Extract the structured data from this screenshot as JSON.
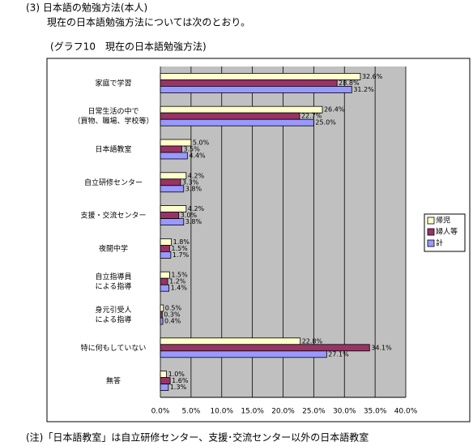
{
  "header": {
    "section": "(3) 日本語の勉強方法(本人)",
    "lead": "現在の日本語勉強方法については次のとおり。",
    "caption": "(グラフ10　現在の日本語勉強方法)"
  },
  "chart_data": {
    "type": "hbar",
    "categories": [
      "家庭で学習",
      "日常生活の中で\n（買物、職場、学校等）",
      "日本語教室",
      "自立研修センター",
      "支援・交流センター",
      "夜間中学",
      "自立指導員\nによる指導",
      "身元引受人\nによる指導",
      "特に何もしていない",
      "無答"
    ],
    "series": [
      {
        "name": "帰児",
        "color": "#FFFFCC",
        "values": [
          32.6,
          26.4,
          5.0,
          4.2,
          4.2,
          1.8,
          1.5,
          0.5,
          22.8,
          1.0
        ],
        "value_labels": [
          "32.6%",
          "26.4%",
          "5.0%",
          "4.2%",
          "4.2%",
          "1.8%",
          "1.5%",
          "0.5%",
          "22.8%",
          "1.0%"
        ]
      },
      {
        "name": "婦人等",
        "color": "#993366",
        "values": [
          28.8,
          22.7,
          3.5,
          3.3,
          3.0,
          1.5,
          1.2,
          0.3,
          34.1,
          1.6
        ],
        "value_labels": [
          "28.8%",
          "22.7%",
          "3.5%",
          "3.3%",
          "3.0%",
          "1.5%",
          "1.2%",
          "0.3%",
          "34.1%",
          "1.6%"
        ]
      },
      {
        "name": "計",
        "color": "#9999FF",
        "values": [
          31.2,
          25.0,
          4.4,
          3.8,
          3.8,
          1.7,
          1.4,
          0.4,
          27.1,
          1.3
        ],
        "value_labels": [
          "31.2%",
          "25.0%",
          "4.4%",
          "3.8%",
          "3.8%",
          "1.7%",
          "1.4%",
          "0.4%",
          "27.1%",
          "1.3%"
        ]
      }
    ],
    "xlim": [
      0,
      40
    ],
    "xticks": [
      {
        "value": 0,
        "label": "0.0%"
      },
      {
        "value": 5,
        "label": "5.0%"
      },
      {
        "value": 10,
        "label": "10.0%"
      },
      {
        "value": 15,
        "label": "15.0%"
      },
      {
        "value": 20,
        "label": "20.0%"
      },
      {
        "value": 25,
        "label": "25.0%"
      },
      {
        "value": 30,
        "label": "30.0%"
      },
      {
        "value": 35,
        "label": "35.0%"
      },
      {
        "value": 40,
        "label": "40.0%"
      }
    ],
    "grid": true,
    "legend": "right"
  },
  "footnote": "(注)「日本語教室」は自立研修センター、支援･交流センター以外の日本語教室"
}
